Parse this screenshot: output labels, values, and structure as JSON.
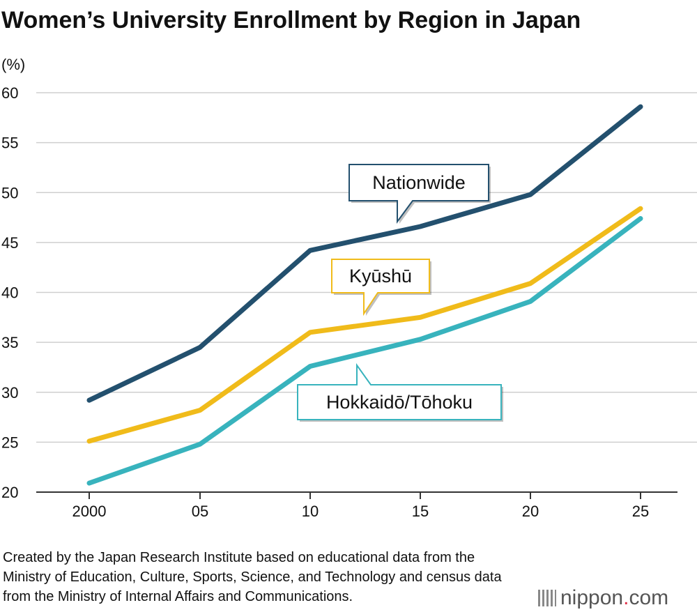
{
  "chart_data": {
    "type": "line",
    "title": "Women’s University Enrollment by Region in Japan",
    "ylabel": "(%)",
    "xlabel": "",
    "categories": [
      "2000",
      "05",
      "10",
      "15",
      "20",
      "25"
    ],
    "ylim": [
      20,
      60
    ],
    "yticks": [
      "20",
      "25",
      "30",
      "35",
      "40",
      "45",
      "50",
      "55",
      "60"
    ],
    "grid": true,
    "series": [
      {
        "name": "Nationwide",
        "color": "#23506e",
        "values": [
          29.2,
          34.5,
          44.2,
          46.6,
          49.8,
          58.6
        ]
      },
      {
        "name": "Kyūshū",
        "color": "#f0bb1a",
        "values": [
          25.1,
          28.2,
          36.0,
          37.5,
          40.9,
          48.4
        ]
      },
      {
        "name": "Hokkaidō/Tōhoku",
        "color": "#38b3bd",
        "values": [
          20.9,
          24.8,
          32.6,
          35.3,
          39.1,
          47.4
        ]
      }
    ]
  },
  "source_note": "Created by the Japan Research Institute based on educational data from the Ministry of Education, Culture, Sports, Science, and Technology and census data from the Ministry of Internal Affairs and Communications.",
  "logo": {
    "name": "nippon",
    "dot": ".",
    "suffix": "com"
  }
}
